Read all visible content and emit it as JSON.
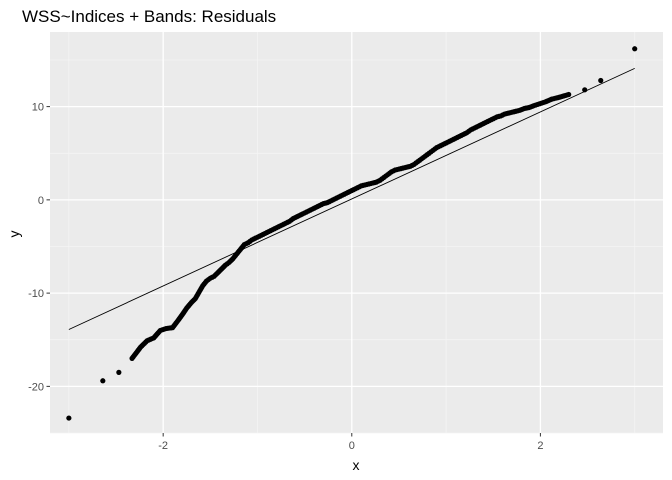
{
  "chart_data": {
    "type": "scatter",
    "title": "WSS~Indices + Bands: Residuals",
    "xlabel": "x",
    "ylabel": "y",
    "xlim": [
      -3.2,
      3.3
    ],
    "ylim": [
      -25,
      18
    ],
    "xticks": [
      -2,
      0,
      2
    ],
    "xtick_labels": [
      "-2",
      "0",
      "2"
    ],
    "yticks": [
      -20,
      -10,
      0,
      10
    ],
    "ytick_labels": [
      "-20",
      "-10",
      "0",
      "10"
    ],
    "grid": true,
    "legend": "none",
    "reference_line": {
      "x": [
        -3.0,
        3.0
      ],
      "y": [
        -13.9,
        14.1
      ]
    },
    "points": {
      "x": [
        -3.0,
        -2.64,
        -2.47,
        -2.33,
        -2.24,
        -2.17,
        -2.1,
        -2.03,
        -1.97,
        -1.9,
        -1.84,
        -1.79,
        -1.75,
        -1.7,
        -1.66,
        -1.62,
        -1.58,
        -1.54,
        -1.5,
        -1.46,
        -1.42,
        -1.38,
        -1.34,
        -1.3,
        -1.26,
        -1.22,
        -1.18,
        -1.14,
        -1.1,
        -1.06,
        -1.02,
        -0.98,
        -0.94,
        -0.9,
        -0.86,
        -0.82,
        -0.78,
        -0.74,
        -0.7,
        -0.66,
        -0.62,
        -0.58,
        -0.54,
        -0.5,
        -0.46,
        -0.42,
        -0.38,
        -0.34,
        -0.3,
        -0.26,
        -0.22,
        -0.18,
        -0.14,
        -0.1,
        -0.06,
        -0.02,
        0.02,
        0.06,
        0.1,
        0.14,
        0.18,
        0.22,
        0.26,
        0.3,
        0.34,
        0.38,
        0.42,
        0.46,
        0.5,
        0.54,
        0.58,
        0.62,
        0.66,
        0.7,
        0.74,
        0.78,
        0.82,
        0.86,
        0.9,
        0.94,
        0.98,
        1.02,
        1.06,
        1.1,
        1.14,
        1.18,
        1.22,
        1.26,
        1.3,
        1.34,
        1.38,
        1.42,
        1.46,
        1.5,
        1.54,
        1.58,
        1.62,
        1.66,
        1.7,
        1.74,
        1.78,
        1.83,
        1.88,
        1.93,
        1.99,
        2.05,
        2.12,
        2.2,
        2.3,
        2.47,
        2.64,
        3.0
      ],
      "y": [
        -23.4,
        -19.4,
        -18.5,
        -17.0,
        -15.8,
        -15.1,
        -14.8,
        -14.0,
        -13.8,
        -13.7,
        -12.9,
        -12.2,
        -11.6,
        -11.0,
        -10.6,
        -9.9,
        -9.2,
        -8.7,
        -8.4,
        -8.2,
        -7.8,
        -7.4,
        -7.0,
        -6.7,
        -6.3,
        -5.8,
        -5.3,
        -4.8,
        -4.6,
        -4.3,
        -4.1,
        -3.9,
        -3.7,
        -3.5,
        -3.3,
        -3.1,
        -2.9,
        -2.7,
        -2.5,
        -2.3,
        -2.0,
        -1.8,
        -1.6,
        -1.4,
        -1.2,
        -1.0,
        -0.8,
        -0.6,
        -0.4,
        -0.3,
        -0.1,
        0.1,
        0.3,
        0.5,
        0.7,
        0.9,
        1.1,
        1.3,
        1.5,
        1.6,
        1.7,
        1.8,
        1.9,
        2.1,
        2.4,
        2.7,
        3.0,
        3.2,
        3.3,
        3.4,
        3.5,
        3.6,
        3.8,
        4.1,
        4.4,
        4.7,
        5.0,
        5.3,
        5.6,
        5.8,
        6.0,
        6.2,
        6.4,
        6.6,
        6.8,
        7.0,
        7.2,
        7.5,
        7.7,
        7.9,
        8.1,
        8.3,
        8.5,
        8.7,
        8.9,
        9.0,
        9.2,
        9.3,
        9.4,
        9.5,
        9.6,
        9.8,
        9.9,
        10.1,
        10.3,
        10.5,
        10.8,
        11.0,
        11.3,
        11.8,
        12.8,
        16.2
      ]
    }
  }
}
